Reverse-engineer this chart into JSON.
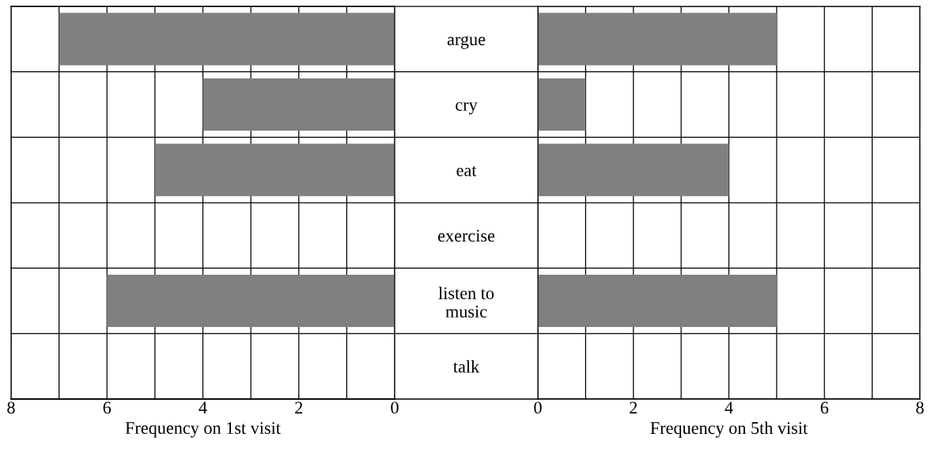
{
  "chart_data": [
    {
      "type": "bar",
      "orientation": "horizontal",
      "xlabel": "Frequency on 1st visit",
      "categories": [
        "argue",
        "cry",
        "eat",
        "exercise",
        "listen to\nmusic",
        "talk"
      ],
      "values": [
        7,
        4,
        5,
        0,
        6,
        0
      ],
      "color": "#808080",
      "xlim": [
        8,
        0
      ],
      "xticks": [
        8,
        {
          "value": 7,
          "label": null
        },
        6,
        {
          "value": 5,
          "label": null
        },
        4,
        {
          "value": 3,
          "label": null
        },
        2,
        {
          "value": 1,
          "label": null
        },
        0
      ],
      "grid": true
    },
    {
      "type": "bar",
      "orientation": "horizontal",
      "xlabel": "Frequency on 5th visit",
      "categories": [
        null,
        null,
        null,
        null,
        null,
        null
      ],
      "values": [
        5,
        1,
        4,
        0,
        5,
        0
      ],
      "color": "#808080",
      "xlim": [
        0,
        8
      ],
      "xticks": [
        0,
        {
          "value": 1,
          "label": null
        },
        2,
        {
          "value": 3,
          "label": null
        },
        4,
        {
          "value": 5,
          "label": null
        },
        6,
        {
          "value": 7,
          "label": null
        },
        8
      ],
      "grid": true,
      "tick_labels": "x"
    }
  ]
}
